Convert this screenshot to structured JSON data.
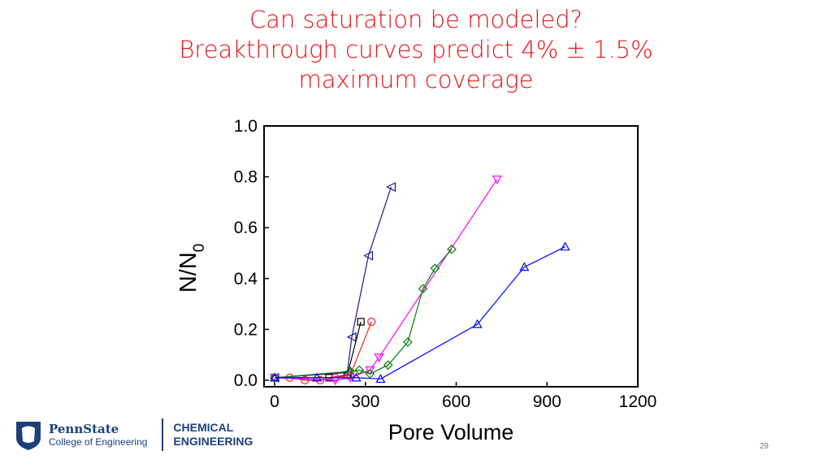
{
  "slide": {
    "title_lines": [
      "Can saturation be modeled?",
      "Breakthrough curves predict 4% ± 1.5%",
      "maximum coverage"
    ],
    "page_number": "29",
    "logo": {
      "name": "PennState",
      "subtitle": "College of Engineering",
      "dept_line1": "CHEMICAL",
      "dept_line2": "ENGINEERING"
    }
  },
  "chart_data": {
    "type": "line",
    "title": "",
    "xlabel": "Pore Volume",
    "ylabel": "N/N0",
    "xlim": [
      0,
      1200
    ],
    "ylim": [
      0,
      1.0
    ],
    "xticks": [
      "0",
      "300",
      "600",
      "900",
      "1200"
    ],
    "yticks": [
      "0.0",
      "0.2",
      "0.4",
      "0.6",
      "0.8",
      "1.0"
    ],
    "grid": false,
    "series": [
      {
        "name": "navy left-triangle",
        "color": "#1a1a8c",
        "marker": "tri-left",
        "x": [
          0,
          240,
          255,
          310,
          385
        ],
        "y": [
          0.01,
          0.03,
          0.17,
          0.49,
          0.76
        ]
      },
      {
        "name": "black square",
        "color": "#000000",
        "marker": "square",
        "x": [
          0,
          180,
          240,
          285
        ],
        "y": [
          0.01,
          0.01,
          0.02,
          0.23
        ]
      },
      {
        "name": "red circle",
        "color": "#ff2020",
        "marker": "circle",
        "x": [
          0,
          50,
          100,
          150,
          200,
          250,
          320
        ],
        "y": [
          0.01,
          0.01,
          0.0,
          0.0,
          0.01,
          0.02,
          0.23
        ]
      },
      {
        "name": "magenta down-triangle",
        "color": "#ff00ff",
        "marker": "tri-down",
        "x": [
          0,
          200,
          250,
          315,
          345,
          735
        ],
        "y": [
          0.01,
          0.0,
          0.01,
          0.04,
          0.09,
          0.79
        ]
      },
      {
        "name": "green diamond",
        "color": "#008000",
        "marker": "diamond",
        "x": [
          0,
          250,
          280,
          315,
          375,
          440,
          490,
          530,
          585
        ],
        "y": [
          0.01,
          0.035,
          0.04,
          0.025,
          0.06,
          0.15,
          0.36,
          0.44,
          0.515
        ]
      },
      {
        "name": "blue up-triangle",
        "color": "#0000ff",
        "marker": "tri-up",
        "x": [
          0,
          140,
          270,
          350,
          670,
          825,
          960
        ],
        "y": [
          0.01,
          0.01,
          0.01,
          0.005,
          0.22,
          0.445,
          0.525
        ]
      }
    ]
  }
}
